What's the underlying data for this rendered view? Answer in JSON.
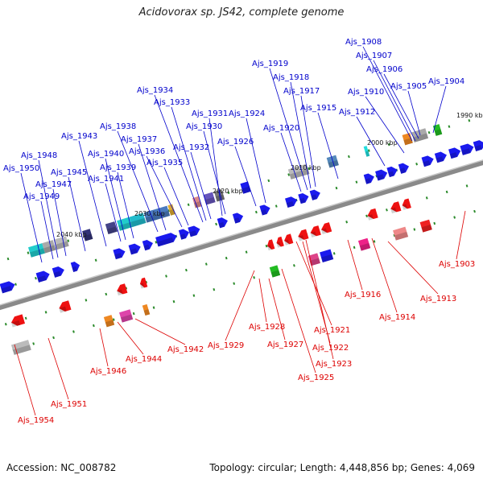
{
  "title": "Acidovorax sp. JS42, complete genome",
  "footer": {
    "accession": "Accession: NC_008782",
    "stats": "Topology: circular; Length: 4,448,856 bp; Genes: 4,069"
  },
  "colors": {
    "plus_strand_label": "#0000cc",
    "minus_strand_label": "#dd0000",
    "backbone": "#888888"
  },
  "ticks": [
    "1990 kbp",
    "2000 kbp",
    "2010 kbp",
    "2020 kbp",
    "2030 kbp",
    "2040 kbp"
  ],
  "plus_strand_labels": [
    "Ajs_1908",
    "Ajs_1907",
    "Ajs_1906",
    "Ajs_1905",
    "Ajs_1904",
    "Ajs_1910",
    "Ajs_1912",
    "Ajs_1915",
    "Ajs_1917",
    "Ajs_1918",
    "Ajs_1919",
    "Ajs_1920",
    "Ajs_1924",
    "Ajs_1926",
    "Ajs_1930",
    "Ajs_1931",
    "Ajs_1932",
    "Ajs_1933",
    "Ajs_1934",
    "Ajs_1935",
    "Ajs_1936",
    "Ajs_1937",
    "Ajs_1938",
    "Ajs_1939",
    "Ajs_1940",
    "Ajs_1941",
    "Ajs_1943",
    "Ajs_1945",
    "Ajs_1947",
    "Ajs_1948",
    "Ajs_1949",
    "Ajs_1950"
  ],
  "minus_strand_labels": [
    "Ajs_1903",
    "Ajs_1913",
    "Ajs_1914",
    "Ajs_1916",
    "Ajs_1921",
    "Ajs_1922",
    "Ajs_1923",
    "Ajs_1925",
    "Ajs_1927",
    "Ajs_1928",
    "Ajs_1929",
    "Ajs_1942",
    "Ajs_1944",
    "Ajs_1946",
    "Ajs_1951",
    "Ajs_1954"
  ]
}
